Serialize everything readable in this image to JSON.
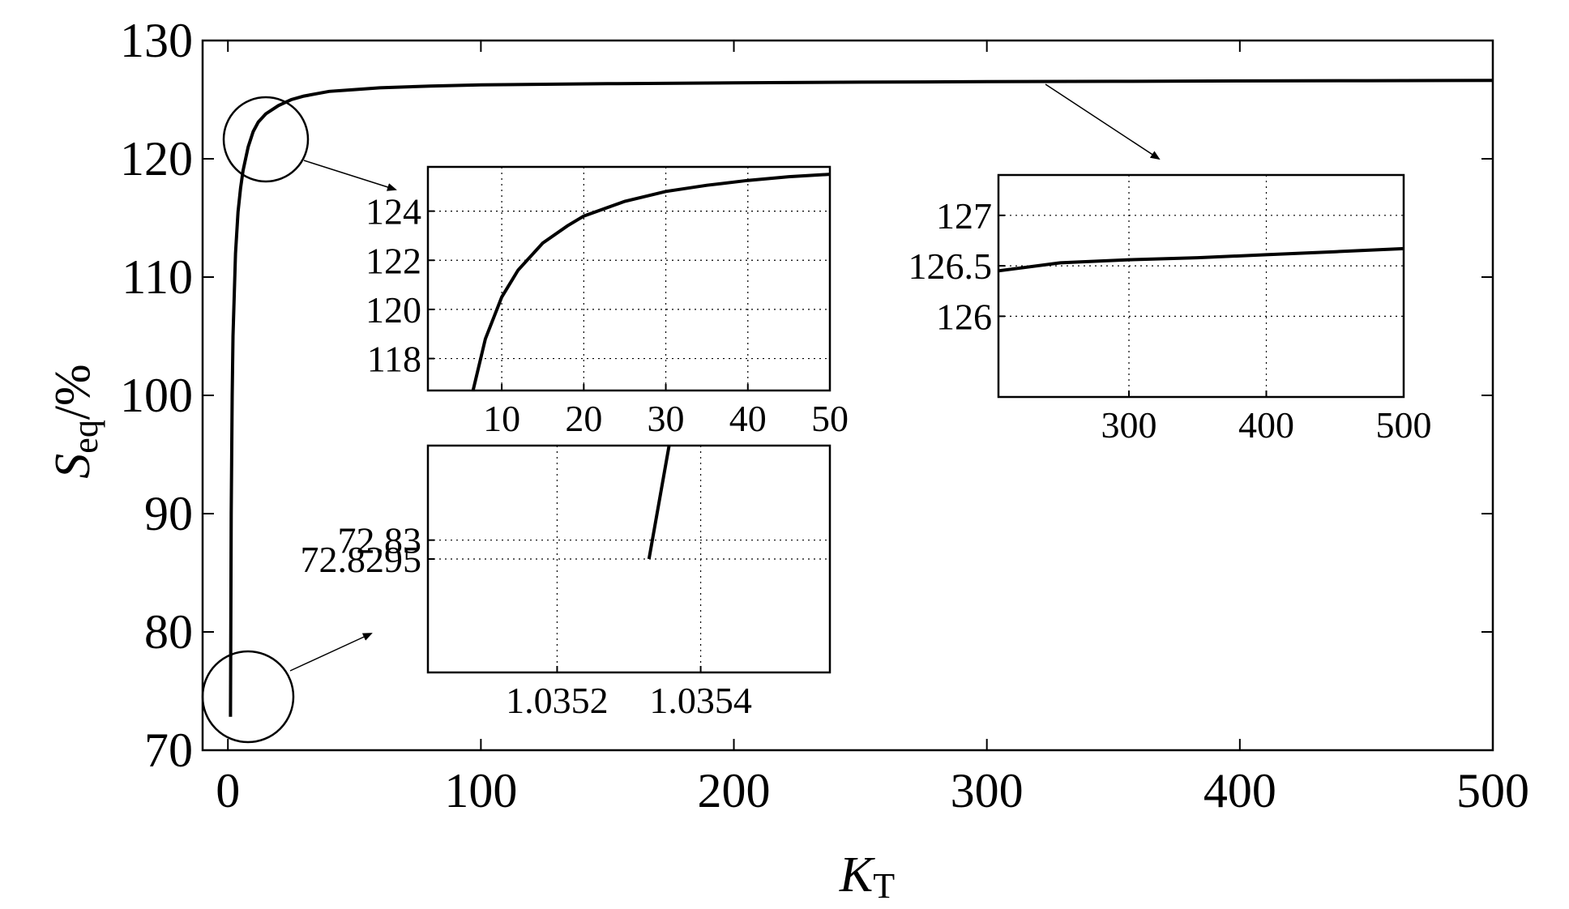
{
  "chart_data": [
    {
      "id": "main",
      "type": "line",
      "xlabel": "K",
      "xlabel_sub": "T",
      "ylabel": "S",
      "ylabel_sub": "eq",
      "ylabel_unit": "/%",
      "xlim": [
        -10,
        500
      ],
      "ylim": [
        70,
        130
      ],
      "xticks": [
        0,
        100,
        200,
        300,
        400,
        500
      ],
      "yticks": [
        70,
        80,
        90,
        100,
        110,
        120,
        130
      ],
      "grid": false,
      "series": [
        {
          "x": [
            1.0353,
            1.3,
            1.7,
            2,
            3,
            4,
            5,
            6,
            8,
            10,
            12,
            15,
            20,
            25,
            30,
            35,
            40,
            50,
            60,
            80,
            100,
            150,
            200,
            250,
            300,
            350,
            400,
            450,
            500
          ],
          "y": [
            72.83,
            90,
            100,
            105,
            112,
            115.5,
            117.5,
            119,
            121,
            122.3,
            123.1,
            123.8,
            124.5,
            125,
            125.3,
            125.5,
            125.7,
            125.85,
            126.0,
            126.15,
            126.25,
            126.35,
            126.42,
            126.48,
            126.52,
            126.55,
            126.58,
            126.6,
            126.62
          ]
        }
      ],
      "annotations": [
        "circle near (10, 122) with arrow to inset-1",
        "circle near (4, 74.5) with arrow to inset-3",
        "arrow from curve near (320, 126.5) to inset-2"
      ]
    },
    {
      "id": "inset-1",
      "type": "line",
      "xlim": [
        1,
        50
      ],
      "ylim": [
        116.7,
        125.8
      ],
      "xticks": [
        10,
        20,
        30,
        40,
        50
      ],
      "yticks": [
        118,
        120,
        122,
        124
      ],
      "ytick_labels": [
        "118",
        "120",
        "122",
        "124"
      ],
      "grid": true,
      "series": [
        {
          "x": [
            6.5,
            8,
            10,
            12,
            15,
            18,
            20,
            25,
            30,
            35,
            40,
            45,
            50
          ],
          "y": [
            116.7,
            118.8,
            120.5,
            121.6,
            122.7,
            123.4,
            123.8,
            124.4,
            124.8,
            125.05,
            125.25,
            125.4,
            125.5
          ]
        }
      ]
    },
    {
      "id": "inset-2",
      "type": "line",
      "xlim": [
        205,
        500
      ],
      "ylim": [
        125.2,
        127.4
      ],
      "xticks": [
        300,
        400,
        500
      ],
      "yticks": [
        126,
        126.5,
        127
      ],
      "ytick_labels": [
        "126",
        "126.5",
        "127"
      ],
      "grid": true,
      "series": [
        {
          "x": [
            205,
            250,
            300,
            350,
            400,
            450,
            500
          ],
          "y": [
            126.45,
            126.53,
            126.56,
            126.58,
            126.61,
            126.64,
            126.67
          ]
        }
      ]
    },
    {
      "id": "inset-3",
      "type": "line",
      "xlim": [
        1.03502,
        1.03558
      ],
      "ylim": [
        72.8265,
        72.8325
      ],
      "xticks": [
        1.0352,
        1.0354
      ],
      "xtick_labels": [
        "1.0352",
        "1.0354"
      ],
      "yticks": [
        72.8295,
        72.83
      ],
      "ytick_labels": [
        "72.8295",
        "72.83"
      ],
      "grid": true,
      "series": [
        {
          "x": [
            1.035328,
            1.035356
          ],
          "y": [
            72.8295,
            72.8325
          ]
        }
      ]
    }
  ]
}
